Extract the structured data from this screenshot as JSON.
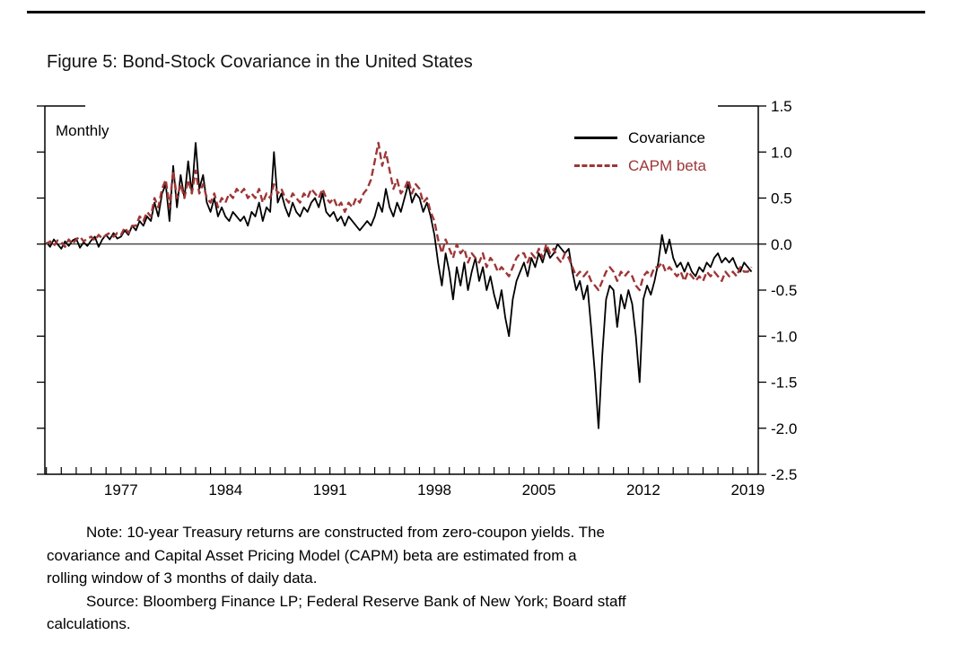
{
  "figure": {
    "title": "Figure 5: Bond-Stock Covariance in the United States",
    "frequency_label": "Monthly"
  },
  "notes": {
    "note_lines": [
      "Note: 10-year Treasury returns are constructed from zero-coupon yields. The",
      "covariance and Capital Asset Pricing Model (CAPM) beta are estimated from a",
      "rolling window of 3 months of daily data."
    ],
    "source_lines": [
      "Source: Bloomberg Finance LP; Federal Reserve Bank of New York; Board staff",
      "calculations."
    ]
  },
  "chart_data": {
    "type": "line",
    "title": "Figure 5: Bond-Stock Covariance in the United States",
    "frequency": "Monthly",
    "xlim": [
      1971.9,
      2019.7
    ],
    "ylim": [
      -2.5,
      1.5
    ],
    "x_tick_years": [
      1977,
      1984,
      1991,
      1998,
      2005,
      2012,
      2019
    ],
    "x_minor_tick_step": 1,
    "y_ticks": [
      1.5,
      1.0,
      0.5,
      0.0,
      -0.5,
      -1.0,
      -1.5,
      -2.0,
      -2.5
    ],
    "y_tick_labels": [
      "1.5",
      "1.0",
      "0.5",
      "0.0",
      "-0.5",
      "-1.0",
      "-1.5",
      "-2.0",
      "-2.5"
    ],
    "zero_line": true,
    "grid": false,
    "legend_position": "top-right",
    "series": [
      {
        "name": "Covariance",
        "color": "#000000",
        "style": "solid",
        "x_start": 1972,
        "x_step": 0.25,
        "values": [
          0.02,
          -0.03,
          0.05,
          0,
          -0.05,
          0.03,
          -0.02,
          0.04,
          0.06,
          -0.04,
          0.02,
          -0.02,
          0.04,
          0.08,
          -0.03,
          0.05,
          0.1,
          0.05,
          0.12,
          0.06,
          0.08,
          0.15,
          0.1,
          0.2,
          0.15,
          0.25,
          0.2,
          0.3,
          0.25,
          0.45,
          0.3,
          0.55,
          0.65,
          0.25,
          0.85,
          0.4,
          0.75,
          0.5,
          0.9,
          0.55,
          1.1,
          0.6,
          0.75,
          0.45,
          0.35,
          0.5,
          0.3,
          0.4,
          0.3,
          0.25,
          0.35,
          0.3,
          0.25,
          0.3,
          0.2,
          0.35,
          0.3,
          0.45,
          0.25,
          0.4,
          0.35,
          1,
          0.45,
          0.55,
          0.4,
          0.3,
          0.45,
          0.35,
          0.3,
          0.4,
          0.35,
          0.45,
          0.5,
          0.4,
          0.55,
          0.35,
          0.3,
          0.35,
          0.25,
          0.3,
          0.2,
          0.3,
          0.25,
          0.2,
          0.15,
          0.2,
          0.25,
          0.2,
          0.3,
          0.45,
          0.35,
          0.6,
          0.4,
          0.3,
          0.45,
          0.35,
          0.5,
          0.65,
          0.45,
          0.55,
          0.5,
          0.35,
          0.45,
          0.3,
          0.1,
          -0.2,
          -0.45,
          -0.1,
          -0.3,
          -0.6,
          -0.25,
          -0.45,
          -0.2,
          -0.5,
          -0.3,
          -0.15,
          -0.4,
          -0.25,
          -0.5,
          -0.35,
          -0.55,
          -0.7,
          -0.5,
          -0.8,
          -1,
          -0.6,
          -0.4,
          -0.3,
          -0.2,
          -0.35,
          -0.15,
          -0.25,
          -0.1,
          -0.2,
          -0.05,
          -0.15,
          -0.1,
          0,
          -0.05,
          -0.1,
          -0.05,
          -0.3,
          -0.5,
          -0.4,
          -0.6,
          -0.45,
          -0.9,
          -1.4,
          -2,
          -1.2,
          -0.6,
          -0.45,
          -0.5,
          -0.9,
          -0.55,
          -0.7,
          -0.5,
          -0.65,
          -1,
          -1.5,
          -0.6,
          -0.45,
          -0.55,
          -0.4,
          -0.2,
          0.1,
          -0.1,
          0.05,
          -0.15,
          -0.25,
          -0.2,
          -0.3,
          -0.2,
          -0.3,
          -0.35,
          -0.25,
          -0.3,
          -0.2,
          -0.25,
          -0.15,
          -0.1,
          -0.2,
          -0.15,
          -0.2,
          -0.15,
          -0.25,
          -0.3,
          -0.2,
          -0.25,
          -0.3
        ]
      },
      {
        "name": "CAPM beta",
        "color": "#9e3637",
        "style": "dashed",
        "x_start": 1972,
        "x_step": 0.25,
        "values": [
          0,
          0.03,
          -0.02,
          0.04,
          0.02,
          -0.03,
          0.05,
          0,
          0.05,
          0.08,
          0.03,
          0.06,
          0.08,
          0.04,
          0.1,
          0.06,
          0.1,
          0.12,
          0.08,
          0.12,
          0.1,
          0.18,
          0.12,
          0.2,
          0.2,
          0.3,
          0.25,
          0.35,
          0.3,
          0.5,
          0.4,
          0.6,
          0.7,
          0.4,
          0.8,
          0.5,
          0.65,
          0.5,
          0.7,
          0.55,
          0.8,
          0.55,
          0.65,
          0.5,
          0.45,
          0.55,
          0.4,
          0.5,
          0.45,
          0.55,
          0.5,
          0.6,
          0.55,
          0.6,
          0.5,
          0.55,
          0.5,
          0.6,
          0.45,
          0.55,
          0.5,
          0.65,
          0.55,
          0.6,
          0.5,
          0.45,
          0.55,
          0.5,
          0.45,
          0.55,
          0.5,
          0.6,
          0.55,
          0.5,
          0.6,
          0.5,
          0.45,
          0.5,
          0.4,
          0.45,
          0.35,
          0.45,
          0.4,
          0.5,
          0.45,
          0.55,
          0.6,
          0.7,
          0.9,
          1.1,
          0.85,
          1,
          0.8,
          0.6,
          0.7,
          0.55,
          0.6,
          0.7,
          0.55,
          0.65,
          0.6,
          0.45,
          0.5,
          0.35,
          0.25,
          0.05,
          -0.1,
          0.05,
          -0.05,
          -0.15,
          0,
          -0.1,
          -0.05,
          -0.2,
          -0.1,
          -0.15,
          -0.2,
          -0.1,
          -0.25,
          -0.15,
          -0.2,
          -0.3,
          -0.25,
          -0.3,
          -0.35,
          -0.25,
          -0.15,
          -0.1,
          -0.1,
          -0.2,
          -0.1,
          -0.15,
          -0.05,
          -0.15,
          0,
          -0.1,
          -0.05,
          -0.15,
          -0.2,
          -0.1,
          -0.15,
          -0.25,
          -0.35,
          -0.3,
          -0.35,
          -0.3,
          -0.4,
          -0.45,
          -0.5,
          -0.4,
          -0.3,
          -0.25,
          -0.3,
          -0.4,
          -0.3,
          -0.35,
          -0.3,
          -0.35,
          -0.45,
          -0.5,
          -0.35,
          -0.3,
          -0.35,
          -0.25,
          -0.25,
          -0.2,
          -0.3,
          -0.25,
          -0.3,
          -0.35,
          -0.3,
          -0.4,
          -0.3,
          -0.35,
          -0.4,
          -0.35,
          -0.4,
          -0.3,
          -0.35,
          -0.3,
          -0.35,
          -0.4,
          -0.3,
          -0.35,
          -0.3,
          -0.35,
          -0.25,
          -0.3,
          -0.3,
          -0.25
        ]
      }
    ]
  }
}
